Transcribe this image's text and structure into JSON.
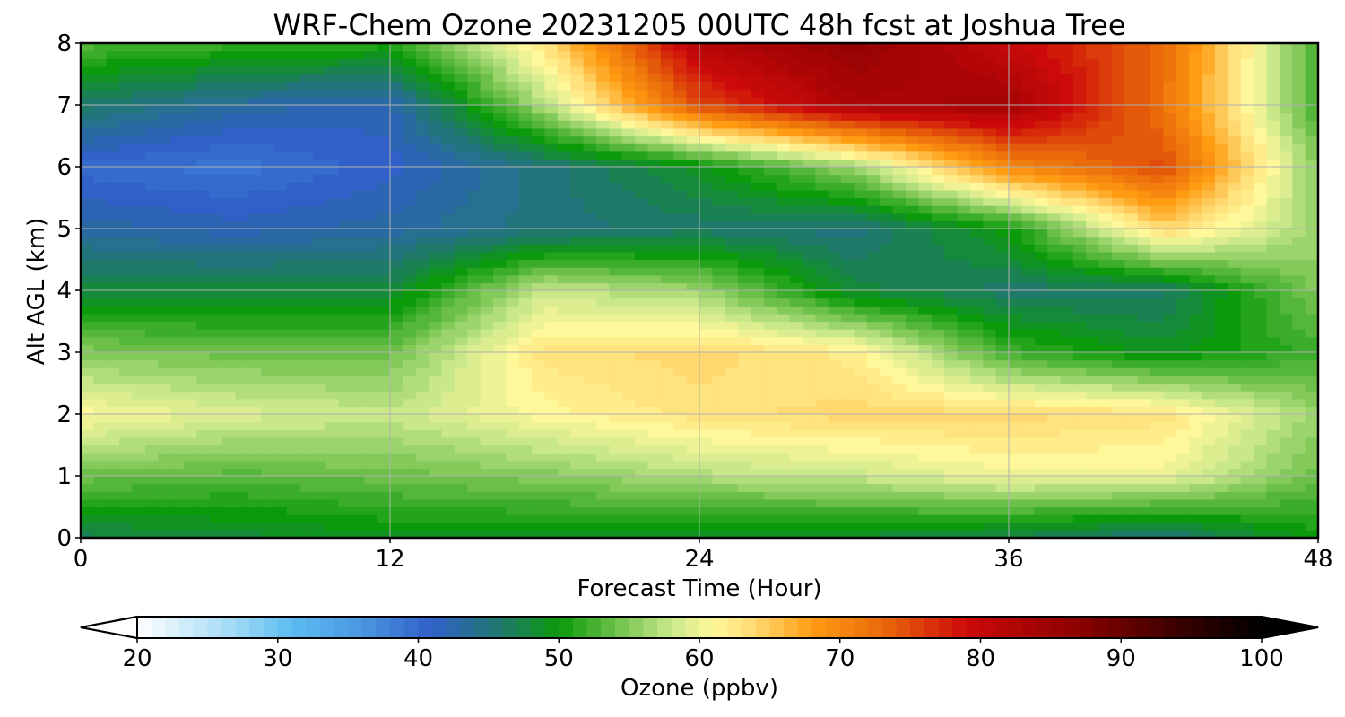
{
  "chart_data": {
    "type": "heatmap",
    "title": "WRF-Chem Ozone  20231205 00UTC 48h fcst at Joshua Tree",
    "xlabel": "Forecast Time (Hour)",
    "ylabel": "Alt AGL (km)",
    "xlim": [
      0,
      48
    ],
    "ylim": [
      0,
      8
    ],
    "x_ticks": [
      "0",
      "12",
      "24",
      "36",
      "48"
    ],
    "y_ticks": [
      "0",
      "1",
      "2",
      "3",
      "4",
      "5",
      "6",
      "7",
      "8"
    ],
    "grid": true,
    "x": [
      0,
      6,
      12,
      18,
      24,
      30,
      36,
      42,
      48
    ],
    "y": [
      0,
      1,
      2,
      3,
      4,
      5,
      6,
      7,
      8
    ],
    "z_units": "ppbv",
    "values": [
      [
        47,
        48,
        49,
        49,
        48,
        48,
        47,
        45,
        50
      ],
      [
        54,
        53,
        54,
        55,
        57,
        58,
        60,
        60,
        54
      ],
      [
        61,
        59,
        58,
        61,
        63,
        64,
        64,
        63,
        56
      ],
      [
        55,
        54,
        54,
        63,
        64,
        62,
        52,
        49,
        52
      ],
      [
        48,
        48,
        48,
        58,
        56,
        48,
        46,
        46,
        55
      ],
      [
        43,
        42,
        43,
        45,
        46,
        45,
        50,
        64,
        56
      ],
      [
        40,
        39,
        41,
        45,
        49,
        56,
        70,
        75,
        55
      ],
      [
        46,
        43,
        42,
        57,
        75,
        83,
        84,
        72,
        52
      ],
      [
        53,
        52,
        51,
        63,
        82,
        86,
        80,
        73,
        52
      ]
    ],
    "colorbar": {
      "label": "Ozone  (ppbv)",
      "min": 20,
      "max": 100,
      "ticks": [
        "20",
        "30",
        "40",
        "50",
        "60",
        "70",
        "80",
        "90",
        "100"
      ],
      "extend": "both",
      "stops": [
        {
          "v": 20,
          "c": "#ffffff"
        },
        {
          "v": 27,
          "c": "#9fd9f5"
        },
        {
          "v": 31,
          "c": "#5bbcf2"
        },
        {
          "v": 36,
          "c": "#4a96e0"
        },
        {
          "v": 41,
          "c": "#3060c8"
        },
        {
          "v": 46,
          "c": "#1f7a6a"
        },
        {
          "v": 50,
          "c": "#0a9a0a"
        },
        {
          "v": 54,
          "c": "#6cc04a"
        },
        {
          "v": 58,
          "c": "#c9e88a"
        },
        {
          "v": 61,
          "c": "#fff89a"
        },
        {
          "v": 64,
          "c": "#ffd870"
        },
        {
          "v": 68,
          "c": "#ff9c12"
        },
        {
          "v": 73,
          "c": "#ea6a0a"
        },
        {
          "v": 79,
          "c": "#cc0a0a"
        },
        {
          "v": 87,
          "c": "#8c0000"
        },
        {
          "v": 94,
          "c": "#3a0000"
        },
        {
          "v": 100,
          "c": "#000000"
        }
      ]
    }
  }
}
